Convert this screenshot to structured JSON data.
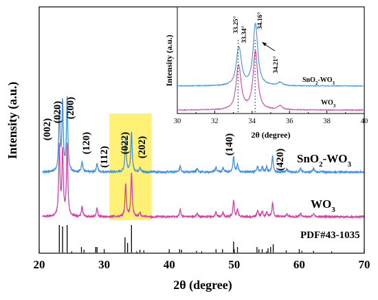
{
  "chart_data": {
    "type": "line",
    "main": {
      "xlabel": "2θ (degree)",
      "ylabel": "Intensity (a.u.)",
      "xlim": [
        20,
        70
      ],
      "x_ticks": [
        "20",
        "30",
        "40",
        "50",
        "60",
        "70"
      ],
      "highlight_range": [
        30.8,
        37.3
      ],
      "highlight_color": "#fff176",
      "series": [
        {
          "name": "SnO₂-WO₃",
          "color": "#3f8fe8",
          "peaks": [
            [
              23.1,
              0.85
            ],
            [
              23.6,
              0.95
            ],
            [
              24.3,
              1.0
            ],
            [
              26.6,
              0.15
            ],
            [
              28.9,
              0.12
            ],
            [
              33.3,
              0.48
            ],
            [
              34.2,
              0.55
            ],
            [
              35.5,
              0.06
            ],
            [
              41.7,
              0.09
            ],
            [
              44.3,
              0.05
            ],
            [
              47.2,
              0.07
            ],
            [
              48.3,
              0.06
            ],
            [
              49.9,
              0.22
            ],
            [
              50.5,
              0.1
            ],
            [
              53.6,
              0.08
            ],
            [
              54.3,
              0.08
            ],
            [
              55.0,
              0.07
            ],
            [
              55.9,
              0.22
            ],
            [
              58.1,
              0.04
            ],
            [
              60.2,
              0.05
            ],
            [
              62.2,
              0.05
            ]
          ]
        },
        {
          "name": "WO₃",
          "color": "#d63fa6",
          "peaks": [
            [
              23.1,
              0.95
            ],
            [
              23.6,
              0.9
            ],
            [
              24.3,
              1.0
            ],
            [
              26.6,
              0.14
            ],
            [
              28.9,
              0.12
            ],
            [
              33.3,
              0.45
            ],
            [
              34.2,
              0.6
            ],
            [
              35.5,
              0.06
            ],
            [
              41.7,
              0.1
            ],
            [
              44.3,
              0.05
            ],
            [
              47.2,
              0.07
            ],
            [
              48.3,
              0.06
            ],
            [
              49.9,
              0.22
            ],
            [
              50.5,
              0.1
            ],
            [
              53.6,
              0.09
            ],
            [
              54.3,
              0.08
            ],
            [
              55.0,
              0.07
            ],
            [
              55.9,
              0.2
            ],
            [
              58.1,
              0.04
            ],
            [
              60.2,
              0.05
            ],
            [
              62.2,
              0.05
            ]
          ]
        }
      ],
      "reference": {
        "name": "PDF#43-1035",
        "sticks": [
          [
            23.1,
            1.0
          ],
          [
            23.6,
            0.95
          ],
          [
            24.3,
            1.0
          ],
          [
            26.5,
            0.2
          ],
          [
            26.9,
            0.1
          ],
          [
            28.7,
            0.2
          ],
          [
            28.9,
            0.2
          ],
          [
            33.2,
            0.55
          ],
          [
            33.6,
            0.35
          ],
          [
            34.2,
            1.0
          ],
          [
            35.5,
            0.1
          ],
          [
            36.1,
            0.08
          ],
          [
            41.6,
            0.12
          ],
          [
            41.9,
            0.1
          ],
          [
            44.2,
            0.06
          ],
          [
            47.2,
            0.12
          ],
          [
            48.2,
            0.12
          ],
          [
            49.9,
            0.4
          ],
          [
            50.5,
            0.2
          ],
          [
            53.5,
            0.2
          ],
          [
            53.8,
            0.12
          ],
          [
            54.3,
            0.12
          ],
          [
            55.2,
            0.15
          ],
          [
            55.6,
            0.2
          ],
          [
            56.0,
            0.3
          ],
          [
            58.0,
            0.08
          ],
          [
            60.4,
            0.06
          ],
          [
            62.2,
            0.06
          ]
        ]
      },
      "annotations": [
        {
          "text": "(002)",
          "x": 23.1
        },
        {
          "text": "(020)",
          "x": 23.6
        },
        {
          "text": "(200)",
          "x": 24.3
        },
        {
          "text": "(120)",
          "x": 26.6
        },
        {
          "text": "(112)",
          "x": 28.9
        },
        {
          "text": "(022)",
          "x": 33.3
        },
        {
          "text": "(202)",
          "x": 34.2
        },
        {
          "text": "(140)",
          "x": 49.9
        },
        {
          "text": "(420)",
          "x": 55.9
        }
      ]
    },
    "inset": {
      "xlabel": "2θ (degree)",
      "ylabel": "Intensity (a.u.)",
      "xlim": [
        30,
        40
      ],
      "x_ticks": [
        "30",
        "32",
        "34",
        "36",
        "38",
        "40"
      ],
      "series": [
        {
          "name": "SnO₂-WO₃",
          "color": "#3f8fe8",
          "peaks": [
            [
              33.25,
              0.55
            ],
            [
              33.34,
              0.5
            ],
            [
              34.16,
              1.0
            ],
            [
              34.21,
              0.6
            ],
            [
              35.5,
              0.08
            ]
          ]
        },
        {
          "name": "WO₃",
          "color": "#d63fa6",
          "peaks": [
            [
              33.25,
              0.8
            ],
            [
              33.34,
              0.4
            ],
            [
              34.16,
              1.0
            ],
            [
              34.21,
              0.5
            ],
            [
              35.5,
              0.1
            ]
          ]
        }
      ],
      "peak_labels": [
        "33.25°",
        "33.34°",
        "34.16°",
        "34.21°"
      ],
      "dotted_lines_x": [
        33.25,
        34.16
      ]
    }
  }
}
